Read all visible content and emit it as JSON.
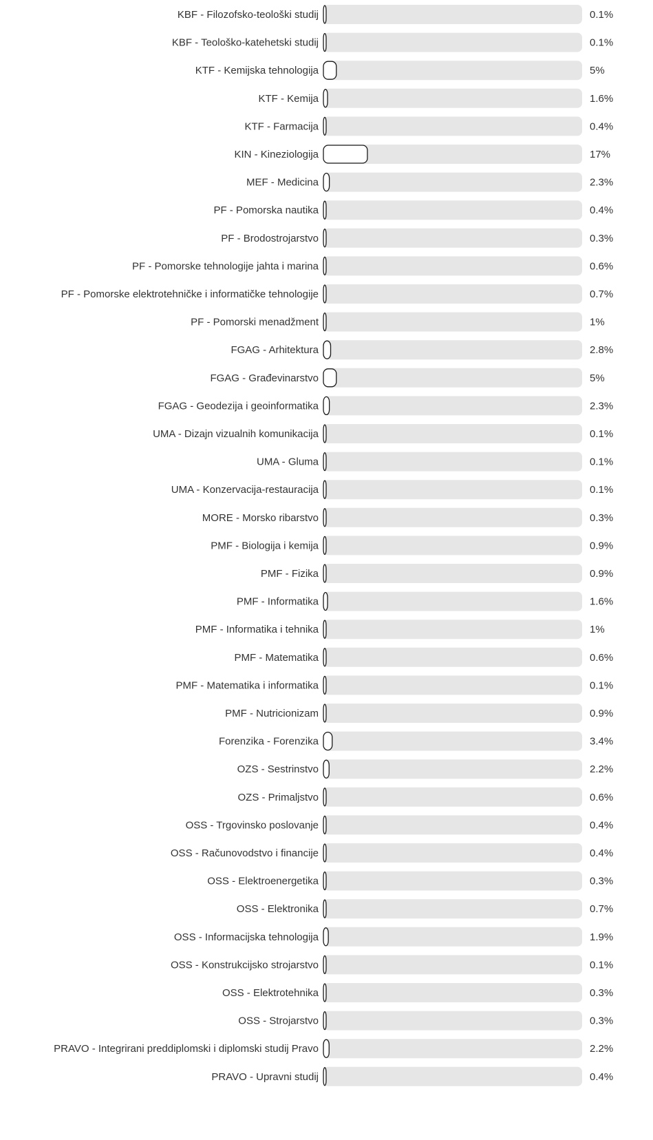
{
  "chart_data": {
    "type": "bar",
    "orientation": "horizontal",
    "categories": [
      "KBF - Filozofsko-teološki studij",
      "KBF - Teološko-katehetski studij",
      "KTF - Kemijska tehnologija",
      "KTF - Kemija",
      "KTF - Farmacija",
      "KIN - Kineziologija",
      "MEF - Medicina",
      "PF - Pomorska nautika",
      "PF - Brodostrojarstvo",
      "PF - Pomorske tehnologije jahta i marina",
      "PF - Pomorske elektrotehničke i informatičke tehnologije",
      "PF - Pomorski menadžment",
      "FGAG - Arhitektura",
      "FGAG - Građevinarstvo",
      "FGAG - Geodezija i geoinformatika",
      "UMA - Dizajn vizualnih komunikacija",
      "UMA - Gluma",
      "UMA - Konzervacija-restauracija",
      "MORE - Morsko ribarstvo",
      "PMF - Biologija i kemija",
      "PMF - Fizika",
      "PMF - Informatika",
      "PMF - Informatika i tehnika",
      "PMF - Matematika",
      "PMF - Matematika i informatika",
      "PMF - Nutricionizam",
      "Forenzika - Forenzika",
      "OZS - Sestrinstvo",
      "OZS - Primaljstvo",
      "OSS - Trgovinsko poslovanje",
      "OSS - Računovodstvo i financije",
      "OSS - Elektroenergetika",
      "OSS - Elektronika",
      "OSS - Informacijska tehnologija",
      "OSS - Konstrukcijsko strojarstvo",
      "OSS - Elektrotehnika",
      "OSS - Strojarstvo",
      "PRAVO - Integrirani preddiplomski i diplomski studij Pravo",
      "PRAVO - Upravni studij"
    ],
    "values": [
      0.1,
      0.1,
      5,
      1.6,
      0.4,
      17,
      2.3,
      0.4,
      0.3,
      0.6,
      0.7,
      1,
      2.8,
      5,
      2.3,
      0.1,
      0.1,
      0.1,
      0.3,
      0.9,
      0.9,
      1.6,
      1,
      0.6,
      0.1,
      0.9,
      3.4,
      2.2,
      0.6,
      0.4,
      0.4,
      0.3,
      0.7,
      1.9,
      0.1,
      0.3,
      0.3,
      2.2,
      0.4
    ],
    "value_labels": [
      "0.1%",
      "0.1%",
      "5%",
      "1.6%",
      "0.4%",
      "17%",
      "2.3%",
      "0.4%",
      "0.3%",
      "0.6%",
      "0.7%",
      "1%",
      "2.8%",
      "5%",
      "2.3%",
      "0.1%",
      "0.1%",
      "0.1%",
      "0.3%",
      "0.9%",
      "0.9%",
      "1.6%",
      "1%",
      "0.6%",
      "0.1%",
      "0.9%",
      "3.4%",
      "2.2%",
      "0.6%",
      "0.4%",
      "0.4%",
      "0.3%",
      "0.7%",
      "1.9%",
      "0.1%",
      "0.3%",
      "0.3%",
      "2.2%",
      "0.4%"
    ],
    "unit": "%",
    "xlim": [
      0,
      100
    ],
    "title": "",
    "xlabel": "",
    "ylabel": "",
    "grid": false,
    "legend": "none",
    "colors": {
      "track": "#e6e6e6",
      "bar_fill": "#ffffff",
      "bar_stroke": "#1a1a1a",
      "text": "#333333"
    }
  }
}
